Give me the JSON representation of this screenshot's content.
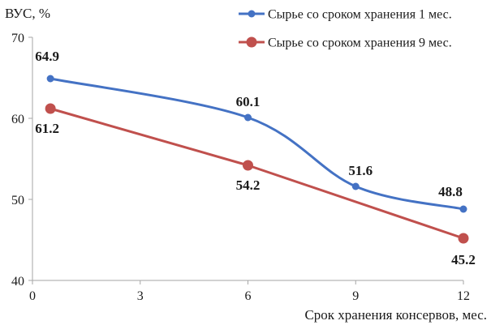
{
  "chart_data": {
    "type": "line",
    "title": "",
    "ylabel": "ВУС, %",
    "xlabel": "Срок хранения консервов, мес.",
    "xlim": [
      0,
      12
    ],
    "ylim": [
      40,
      70
    ],
    "x_ticks": [
      "0",
      "3",
      "6",
      "9",
      "12"
    ],
    "y_ticks": [
      "40",
      "50",
      "60",
      "70"
    ],
    "grid": false,
    "legend_position": "top-right",
    "series": [
      {
        "name": "Сырье со сроком хранения 1 мес.",
        "color": "#4472c4",
        "marker": "small-circle",
        "smooth": true,
        "x": [
          0.5,
          6,
          9,
          12
        ],
        "y": [
          64.9,
          60.1,
          51.6,
          48.8
        ],
        "labels": [
          "64.9",
          "60.1",
          "51.6",
          "48.8"
        ]
      },
      {
        "name": "Сырье со сроком хранения 9 мес.",
        "color": "#c0504d",
        "marker": "large-circle",
        "smooth": false,
        "x": [
          0.5,
          6,
          12
        ],
        "y": [
          61.2,
          54.2,
          45.2
        ],
        "labels": [
          "61.2",
          "54.2",
          "45.2"
        ]
      }
    ]
  }
}
